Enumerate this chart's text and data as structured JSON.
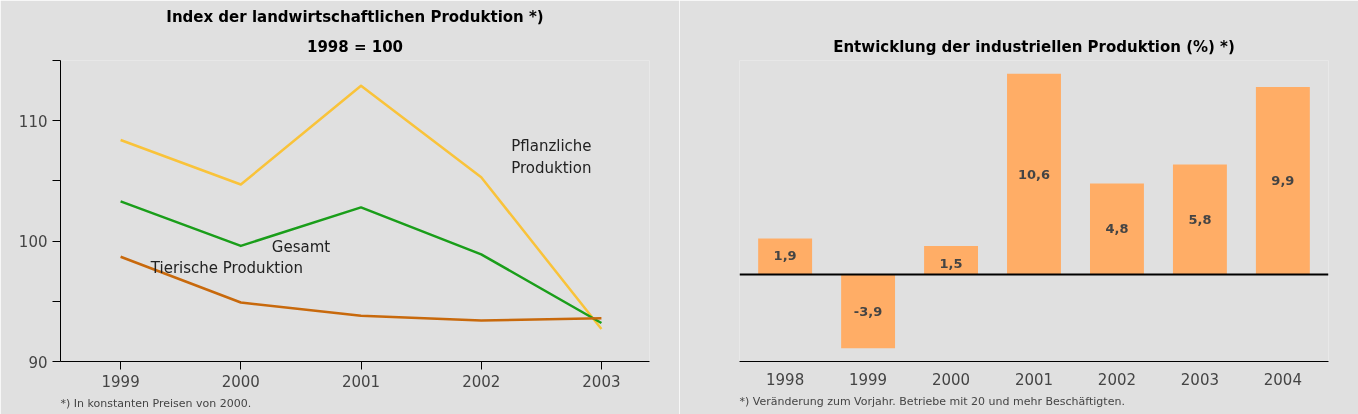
{
  "chart_data": [
    {
      "type": "line",
      "title": "Index der landwirtschaftlichen Produktion *)",
      "subtitle": "1998 = 100",
      "x": [
        1999,
        2000,
        2001,
        2002,
        2003
      ],
      "xlim": [
        1998.5,
        2003.4
      ],
      "xticks": [
        1999,
        2000,
        2001,
        2002,
        2003
      ],
      "ylim": [
        90,
        115
      ],
      "yticks": [
        90,
        {
          "value": 95,
          "label": null
        },
        100,
        {
          "value": 105,
          "label": null
        },
        110,
        {
          "value": 115,
          "label": null
        }
      ],
      "legend": false,
      "marker": "none",
      "line_style": "solid",
      "series": [
        {
          "name": "Pflanzliche Produktion",
          "color": "#f9c33a",
          "values": [
            108.4,
            104.7,
            112.9,
            105.3,
            92.7
          ]
        },
        {
          "name": "Gesamt",
          "color": "#1a9e1a",
          "values": [
            103.3,
            99.6,
            102.8,
            98.9,
            93.2
          ]
        },
        {
          "name": "Tierische Produktion",
          "color": "#c8690c",
          "values": [
            98.7,
            94.9,
            93.8,
            93.4,
            93.6
          ]
        }
      ],
      "annotations": [
        "*) In konstanten Preisen von 2000."
      ]
    },
    {
      "type": "bar",
      "title": "Entwicklung der industriellen Produktion (%) *)",
      "categories": [
        "1998",
        "1999",
        "2000",
        "2001",
        "2002",
        "2003",
        "2004"
      ],
      "values": [
        1.9,
        -3.9,
        1.5,
        10.6,
        4.8,
        5.8,
        9.9
      ],
      "color": "#ffad66",
      "value_labels": [
        "1,9",
        "-3,9",
        "1,5",
        "10,6",
        "4,8",
        "5,8",
        "9,9"
      ],
      "annotations": [
        "*) Veränderung zum Vorjahr. Betriebe mit 20 und mehr Beschäftigten."
      ]
    }
  ]
}
